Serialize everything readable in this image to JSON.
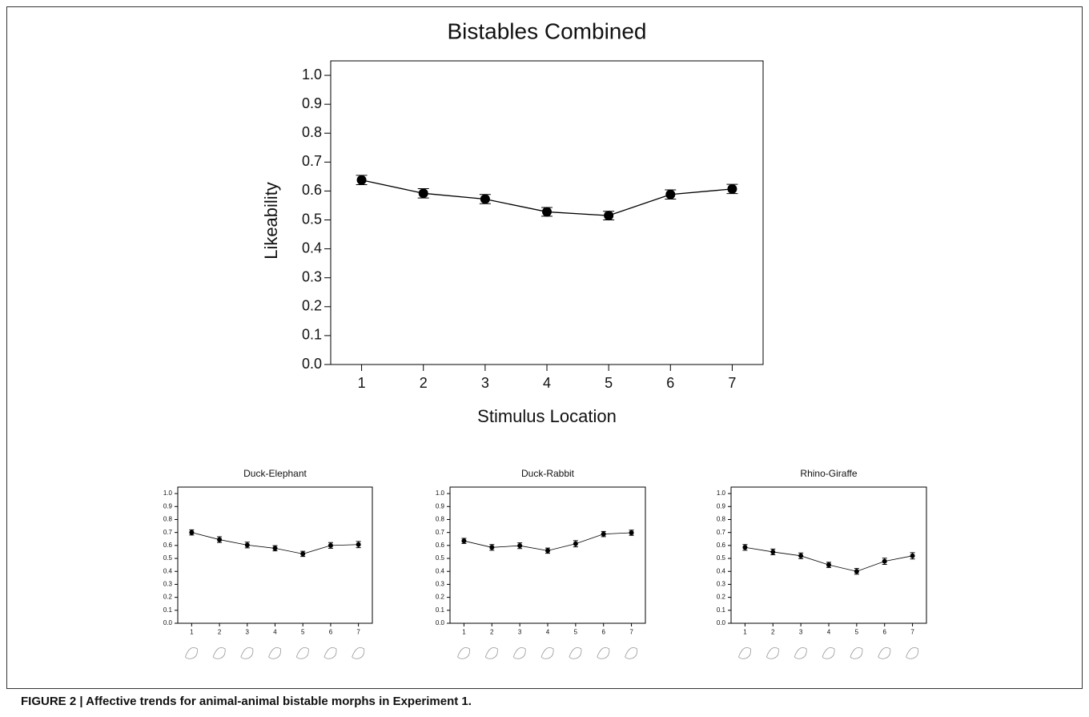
{
  "chart_data": [
    {
      "type": "line",
      "title": "Bistables Combined",
      "xlabel": "Stimulus Location",
      "ylabel": "Likeability",
      "x": [
        1,
        2,
        3,
        4,
        5,
        6,
        7
      ],
      "values": [
        0.638,
        0.592,
        0.572,
        0.528,
        0.515,
        0.588,
        0.607
      ],
      "errors": [
        0.016,
        0.016,
        0.016,
        0.015,
        0.015,
        0.016,
        0.016
      ],
      "color": "#000000",
      "xlim": [
        0.5,
        7.5
      ],
      "ylim": [
        0,
        1.05
      ],
      "xticks": [
        1,
        2,
        3,
        4,
        5,
        6,
        7
      ],
      "yticks": [
        {
          "value": 0,
          "label": "0.0"
        },
        0.1,
        0.2,
        0.3,
        0.4,
        0.5,
        0.6,
        0.7,
        0.8,
        0.9,
        {
          "value": 1,
          "label": "1.0"
        }
      ]
    },
    {
      "type": "line",
      "title": "Duck-Elephant",
      "x": [
        1,
        2,
        3,
        4,
        5,
        6,
        7
      ],
      "values": [
        0.7,
        0.645,
        0.603,
        0.578,
        0.535,
        0.6,
        0.607
      ],
      "errors": [
        0.02,
        0.022,
        0.022,
        0.02,
        0.02,
        0.022,
        0.024
      ],
      "color": "#000000",
      "xlim": [
        0.5,
        7.5
      ],
      "ylim": [
        0,
        1.05
      ],
      "xticks": [
        1,
        2,
        3,
        4,
        5,
        6,
        7
      ],
      "yticks": [
        {
          "value": 0,
          "label": "0.0"
        },
        0.1,
        0.2,
        0.3,
        0.4,
        0.5,
        0.6,
        0.7,
        0.8,
        0.9,
        {
          "value": 1,
          "label": "1.0"
        }
      ]
    },
    {
      "type": "line",
      "title": "Duck-Rabbit",
      "x": [
        1,
        2,
        3,
        4,
        5,
        6,
        7
      ],
      "values": [
        0.635,
        0.585,
        0.598,
        0.56,
        0.613,
        0.688,
        0.698
      ],
      "errors": [
        0.02,
        0.022,
        0.022,
        0.02,
        0.024,
        0.02,
        0.02
      ],
      "color": "#000000",
      "xlim": [
        0.5,
        7.5
      ],
      "ylim": [
        0,
        1.05
      ],
      "xticks": [
        1,
        2,
        3,
        4,
        5,
        6,
        7
      ],
      "yticks": [
        {
          "value": 0,
          "label": "0.0"
        },
        0.1,
        0.2,
        0.3,
        0.4,
        0.5,
        0.6,
        0.7,
        0.8,
        0.9,
        {
          "value": 1,
          "label": "1.0"
        }
      ]
    },
    {
      "type": "line",
      "title": "Rhino-Giraffe",
      "x": [
        1,
        2,
        3,
        4,
        5,
        6,
        7
      ],
      "values": [
        0.585,
        0.55,
        0.52,
        0.45,
        0.4,
        0.478,
        0.52
      ],
      "errors": [
        0.022,
        0.022,
        0.022,
        0.02,
        0.022,
        0.024,
        0.024
      ],
      "color": "#000000",
      "xlim": [
        0.5,
        7.5
      ],
      "ylim": [
        0,
        1.05
      ],
      "xticks": [
        1,
        2,
        3,
        4,
        5,
        6,
        7
      ],
      "yticks": [
        {
          "value": 0,
          "label": "0.0"
        },
        0.1,
        0.2,
        0.3,
        0.4,
        0.5,
        0.6,
        0.7,
        0.8,
        0.9,
        {
          "value": 1,
          "label": "1.0"
        }
      ]
    }
  ],
  "caption": "FIGURE 2 | Affective trends for animal-animal bistable morphs in Experiment 1."
}
